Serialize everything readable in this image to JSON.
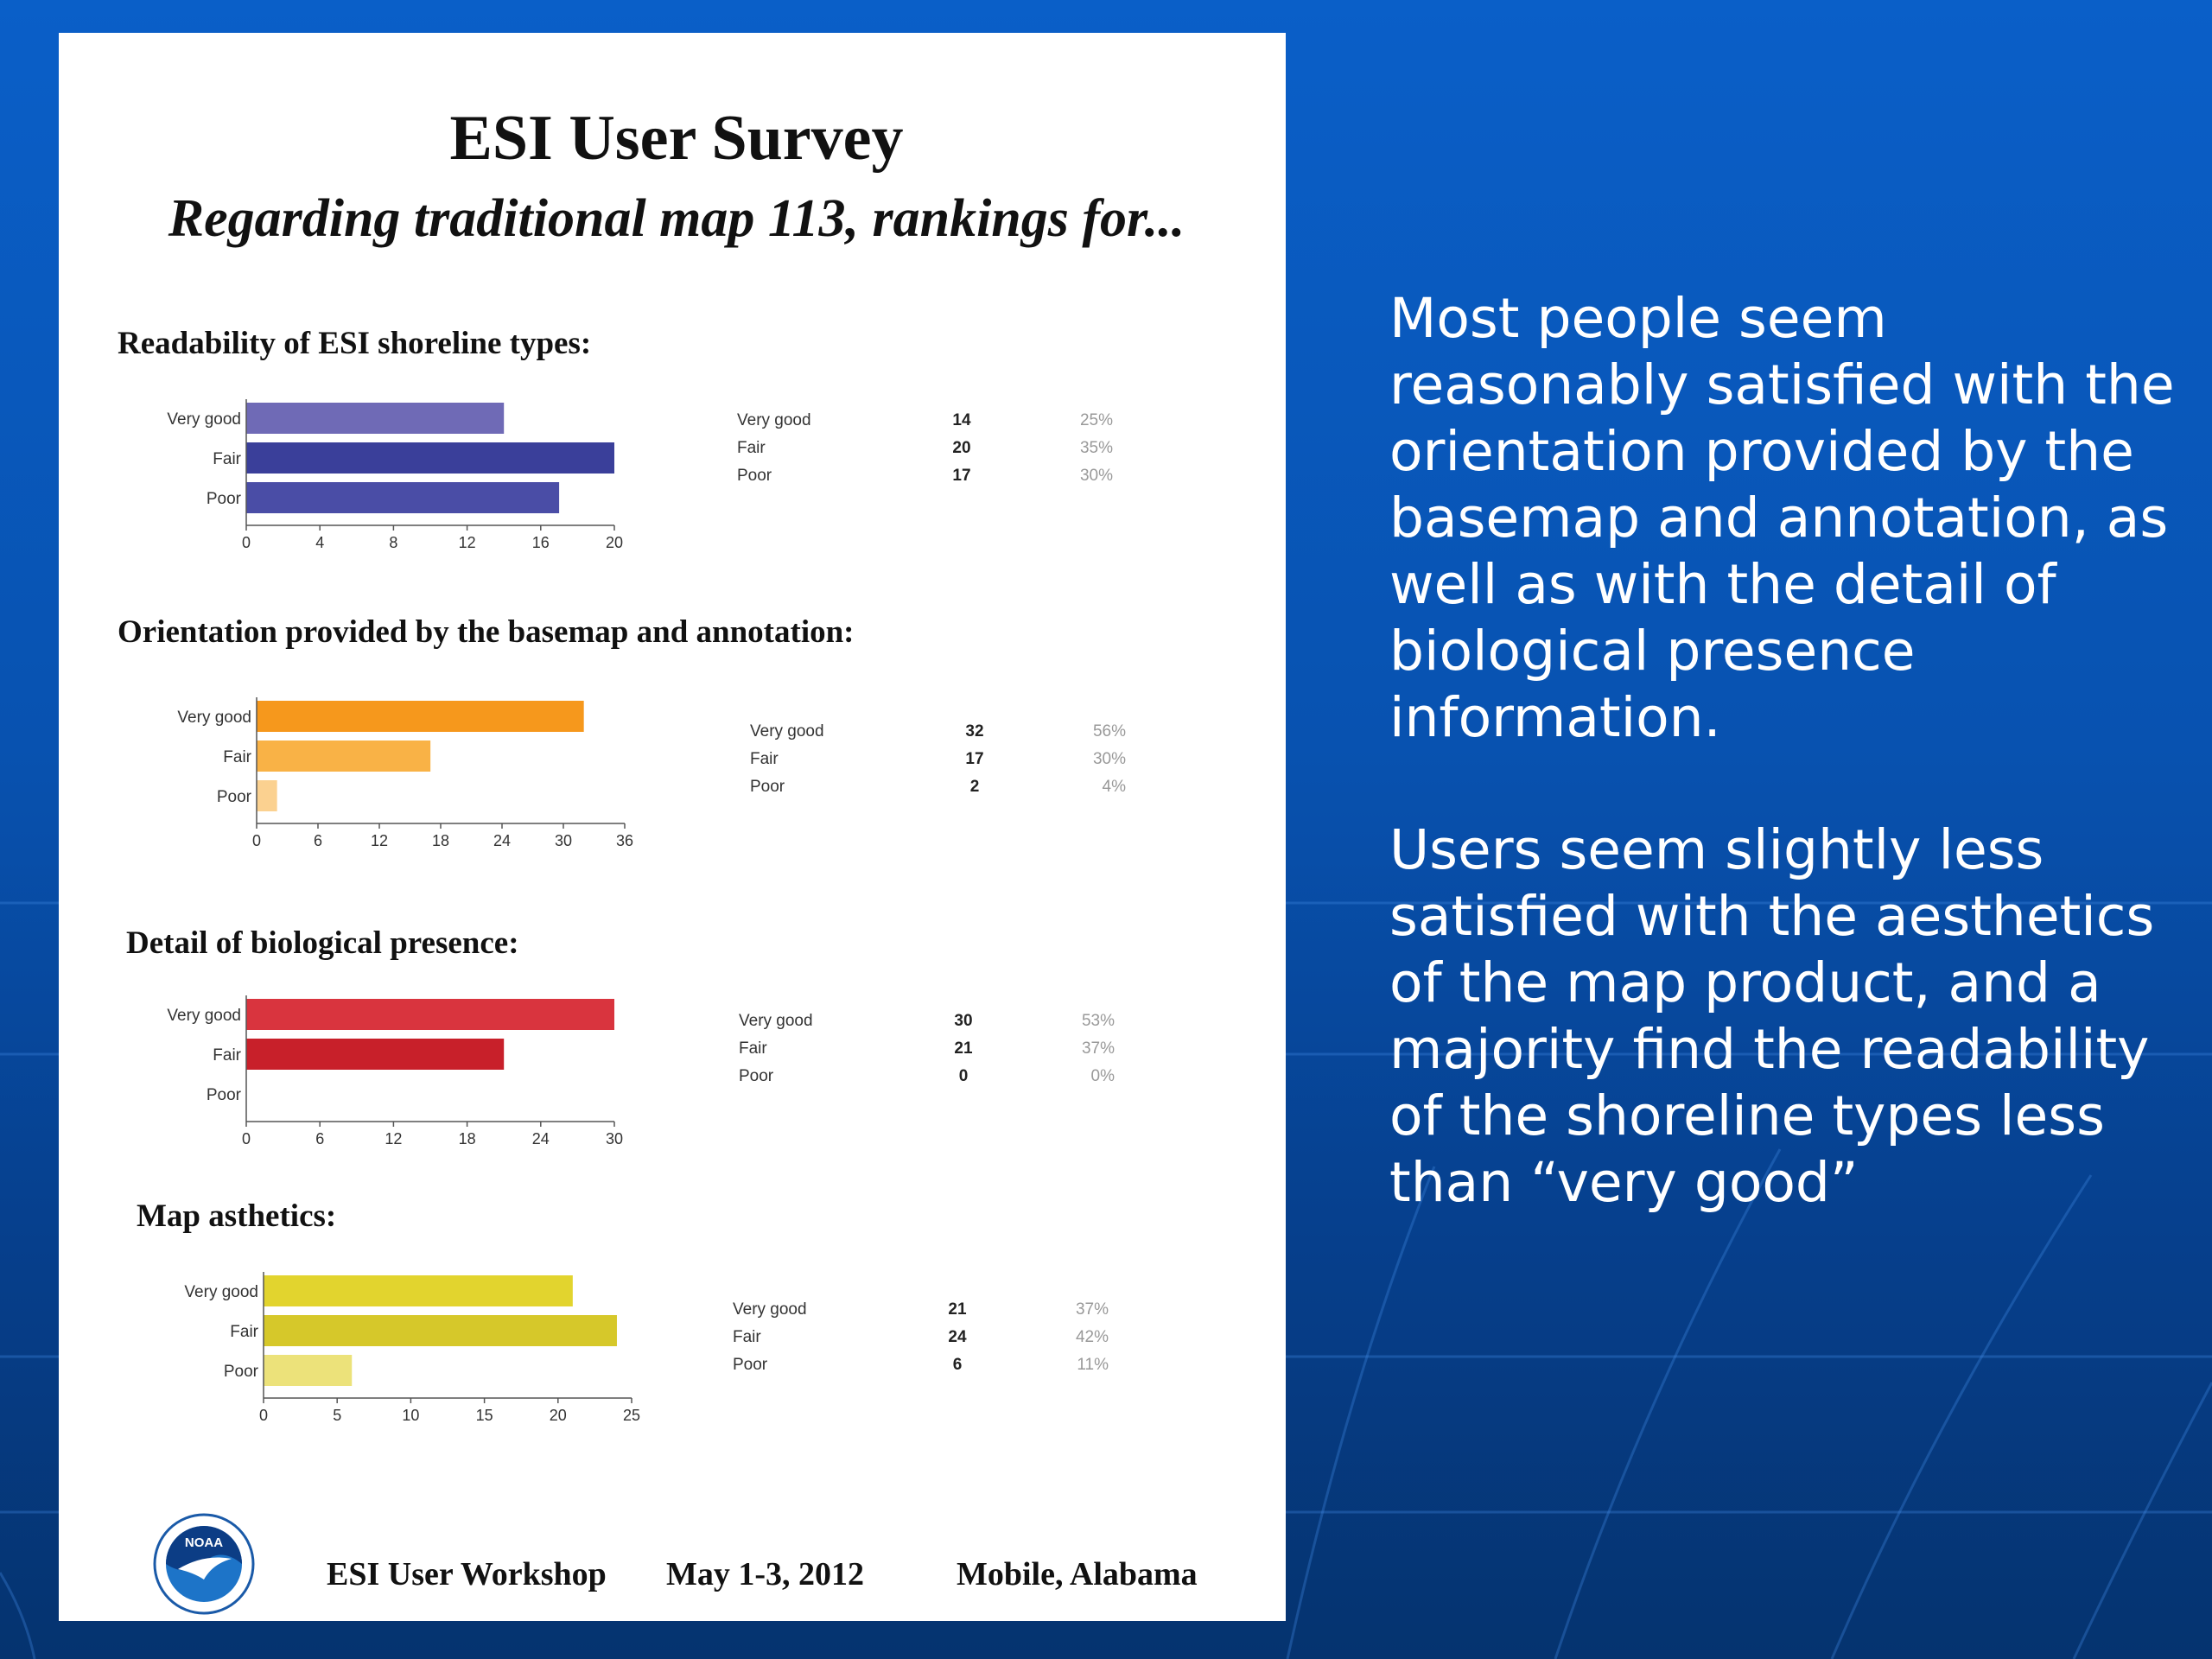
{
  "card": {
    "title": "ESI User Survey",
    "subtitle": "Regarding traditional map 113, rankings for..."
  },
  "chart_data": [
    {
      "type": "bar",
      "title": "Readability of ESI shoreline types:",
      "orientation": "horizontal",
      "categories": [
        "Very good",
        "Fair",
        "Poor"
      ],
      "values": [
        14,
        20,
        17
      ],
      "percentages": [
        "25%",
        "35%",
        "30%"
      ],
      "bar_colors": [
        "#6f6ab6",
        "#3a3f9a",
        "#4a4da6"
      ],
      "xlim": [
        0,
        20
      ],
      "ticks": [
        0,
        4,
        8,
        12,
        16,
        20
      ]
    },
    {
      "type": "bar",
      "title": "Orientation provided by the basemap and annotation:",
      "orientation": "horizontal",
      "categories": [
        "Very good",
        "Fair",
        "Poor"
      ],
      "values": [
        32,
        17,
        2
      ],
      "percentages": [
        "56%",
        "30%",
        "4%"
      ],
      "bar_colors": [
        "#f6981c",
        "#f9b246",
        "#fbd190"
      ],
      "xlim": [
        0,
        36
      ],
      "ticks": [
        0,
        6,
        12,
        18,
        24,
        30,
        36
      ]
    },
    {
      "type": "bar",
      "title": "Detail of biological presence:",
      "orientation": "horizontal",
      "categories": [
        "Very good",
        "Fair",
        "Poor"
      ],
      "values": [
        30,
        21,
        0
      ],
      "percentages": [
        "53%",
        "37%",
        "0%"
      ],
      "bar_colors": [
        "#d9343e",
        "#c8202a",
        "#d9343e"
      ],
      "xlim": [
        0,
        30
      ],
      "ticks": [
        0,
        6,
        12,
        18,
        24,
        30
      ]
    },
    {
      "type": "bar",
      "title": "Map asthetics:",
      "orientation": "horizontal",
      "categories": [
        "Very good",
        "Fair",
        "Poor"
      ],
      "values": [
        21,
        24,
        6
      ],
      "percentages": [
        "37%",
        "42%",
        "11%"
      ],
      "bar_colors": [
        "#e2d42e",
        "#d6c82a",
        "#ece27a"
      ],
      "xlim": [
        0,
        25
      ],
      "ticks": [
        0,
        5,
        10,
        15,
        20,
        25
      ]
    }
  ],
  "legend_labels": [
    "Very good",
    "Fair",
    "Poor"
  ],
  "footer": {
    "logo_text": "NOAA",
    "workshop": "ESI User Workshop",
    "dates": "May 1-3, 2012",
    "location": "Mobile, Alabama"
  },
  "side_text": {
    "paragraph1": "Most people seem reasonably satisfied with the orientation provided by the basemap and annotation, as well as with the detail of biological presence information.",
    "paragraph2": "Users seem slightly less satisfied with the aesthetics of the map product, and  a majority find the readability of the shoreline types less than “very good”"
  },
  "colors": {
    "background": "#0852b0",
    "card": "#ffffff",
    "side_text": "#ffffff"
  }
}
